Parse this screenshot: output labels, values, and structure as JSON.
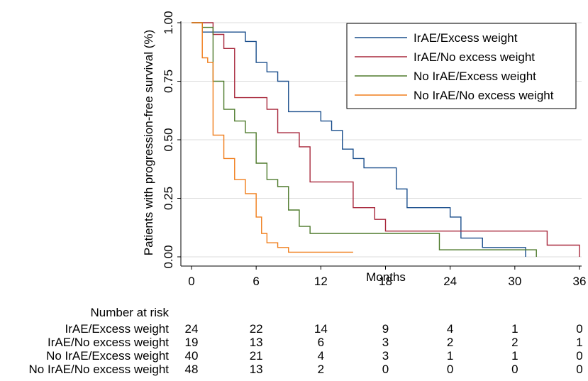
{
  "chart_data": {
    "type": "line",
    "title": "",
    "xlabel": "Months",
    "ylabel": "Patients with progression-free survival (%)",
    "xlim": [
      0,
      36
    ],
    "ylim": [
      0,
      1
    ],
    "xticks": [
      0,
      6,
      12,
      18,
      24,
      30,
      36
    ],
    "yticks": [
      0,
      0.25,
      0.5,
      0.75,
      1
    ],
    "xtick_labels": [
      "0",
      "6",
      "12",
      "18",
      "24",
      "30",
      "36"
    ],
    "ytick_labels": [
      "0.00",
      "0.25",
      "0.50",
      "0.75",
      "1.00"
    ],
    "grid": "horizontal",
    "legend_position": "top-right",
    "step": true,
    "series": [
      {
        "name": "IrAE/Excess weight",
        "color": "#1a4e8c",
        "x": [
          0,
          1,
          5,
          6,
          7,
          8,
          9,
          12,
          13,
          14,
          15,
          16,
          17,
          19,
          20,
          24,
          25,
          27,
          31,
          31
        ],
        "y": [
          1,
          0.96,
          0.92,
          0.83,
          0.79,
          0.75,
          0.62,
          0.58,
          0.54,
          0.46,
          0.42,
          0.38,
          0.38,
          0.29,
          0.21,
          0.17,
          0.08,
          0.04,
          0.04,
          0
        ]
      },
      {
        "name": "IrAE/No excess weight",
        "color": "#a8283c",
        "x": [
          0,
          2,
          3,
          4,
          7,
          8,
          10,
          11,
          15,
          16,
          17,
          18,
          33,
          36
        ],
        "y": [
          1,
          0.95,
          0.89,
          0.68,
          0.63,
          0.53,
          0.47,
          0.32,
          0.21,
          0.21,
          0.16,
          0.11,
          0.05,
          0
        ],
        "x_end": 36
      },
      {
        "name": "No IrAE/Excess weight",
        "color": "#4e7a2c",
        "x": [
          0,
          1,
          2,
          3,
          4,
          5,
          6,
          7,
          8,
          9,
          10,
          11,
          23,
          32
        ],
        "y": [
          1,
          0.98,
          0.75,
          0.63,
          0.58,
          0.53,
          0.4,
          0.33,
          0.3,
          0.2,
          0.13,
          0.1,
          0.03,
          0
        ],
        "x_end": 32
      },
      {
        "name": "No IrAE/No excess weight",
        "color": "#f07d1a",
        "x": [
          0,
          1,
          1.5,
          2,
          3,
          4,
          5,
          6,
          6.5,
          7,
          8,
          9,
          11,
          12
        ],
        "y": [
          1,
          0.85,
          0.83,
          0.52,
          0.42,
          0.33,
          0.27,
          0.17,
          0.1,
          0.06,
          0.04,
          0.02,
          0.02,
          0.02
        ],
        "x_end": 15
      }
    ]
  },
  "risk_table": {
    "title": "Number at risk",
    "times": [
      0,
      6,
      12,
      18,
      24,
      30,
      36
    ],
    "rows": [
      {
        "label": "IrAE/Excess weight",
        "values": [
          "24",
          "22",
          "14",
          "9",
          "4",
          "1",
          "0"
        ]
      },
      {
        "label": "IrAE/No excess weight",
        "values": [
          "19",
          "13",
          "6",
          "3",
          "2",
          "2",
          "1"
        ]
      },
      {
        "label": "No IrAE/Excess weight",
        "values": [
          "40",
          "21",
          "4",
          "3",
          "1",
          "1",
          "0"
        ]
      },
      {
        "label": "No IrAE/No excess weight",
        "values": [
          "48",
          "13",
          "2",
          "0",
          "0",
          "0",
          "0"
        ]
      }
    ]
  }
}
